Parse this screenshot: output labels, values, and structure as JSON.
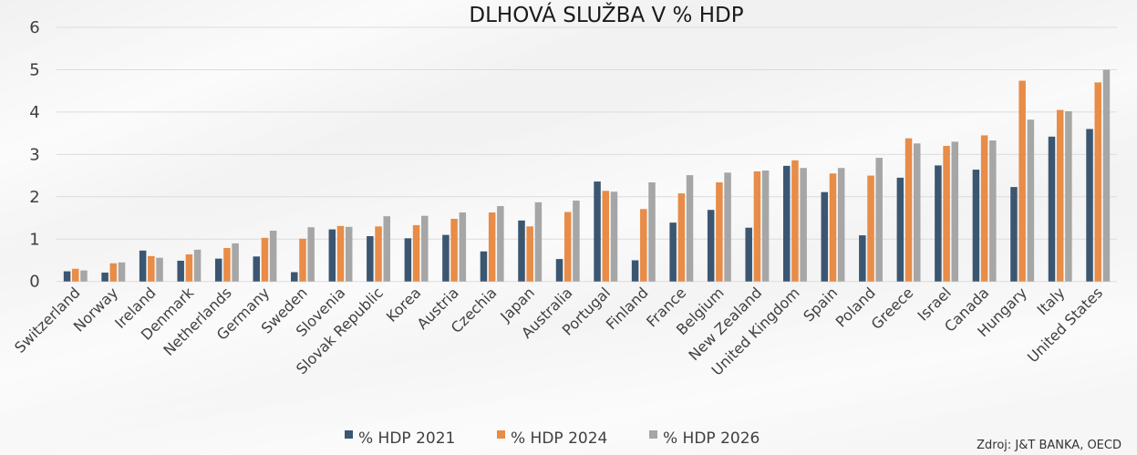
{
  "chart_data": {
    "type": "bar",
    "title": "DLHOVÁ SLUŽBA V % HDP",
    "xlabel": "",
    "ylabel": "",
    "ylim": [
      0,
      6
    ],
    "yticks": [
      "0",
      "1",
      "2",
      "3",
      "4",
      "5",
      "6"
    ],
    "grid": true,
    "legend_position": "bottom",
    "categories": [
      "Switzerland",
      "Norway",
      "Ireland",
      "Denmark",
      "Netherlands",
      "Germany",
      "Sweden",
      "Slovenia",
      "Slovak Republic",
      "Korea",
      "Austria",
      "Czechia",
      "Japan",
      "Australia",
      "Portugal",
      "Finland",
      "France",
      "Belgium",
      "New Zealand",
      "United Kingdom",
      "Spain",
      "Poland",
      "Greece",
      "Israel",
      "Canada",
      "Hungary",
      "Italy",
      "United States"
    ],
    "series": [
      {
        "name": "% HDP 2021",
        "color": "#3b5671",
        "values": [
          0.24,
          0.21,
          0.73,
          0.49,
          0.54,
          0.59,
          0.22,
          1.23,
          1.07,
          1.02,
          1.1,
          0.71,
          1.44,
          0.53,
          2.36,
          0.5,
          1.39,
          1.69,
          1.27,
          2.73,
          2.11,
          1.09,
          2.45,
          2.74,
          2.64,
          2.23,
          3.42,
          3.6
        ]
      },
      {
        "name": "% HDP 2024",
        "color": "#e88c47",
        "values": [
          0.3,
          0.43,
          0.6,
          0.64,
          0.79,
          1.03,
          1.01,
          1.31,
          1.3,
          1.33,
          1.48,
          1.63,
          1.3,
          1.64,
          2.14,
          1.71,
          2.08,
          2.34,
          2.6,
          2.86,
          2.55,
          2.5,
          3.38,
          3.2,
          3.45,
          4.74,
          4.05,
          4.7
        ]
      },
      {
        "name": "% HDP 2026",
        "color": "#a6a6a6",
        "values": [
          0.26,
          0.45,
          0.56,
          0.75,
          0.9,
          1.2,
          1.28,
          1.29,
          1.54,
          1.55,
          1.63,
          1.78,
          1.87,
          1.91,
          2.12,
          2.34,
          2.51,
          2.57,
          2.62,
          2.68,
          2.68,
          2.92,
          3.26,
          3.3,
          3.33,
          3.82,
          4.02,
          5.0
        ]
      }
    ]
  },
  "source": "Zdroj: J&T BANKA, OECD"
}
